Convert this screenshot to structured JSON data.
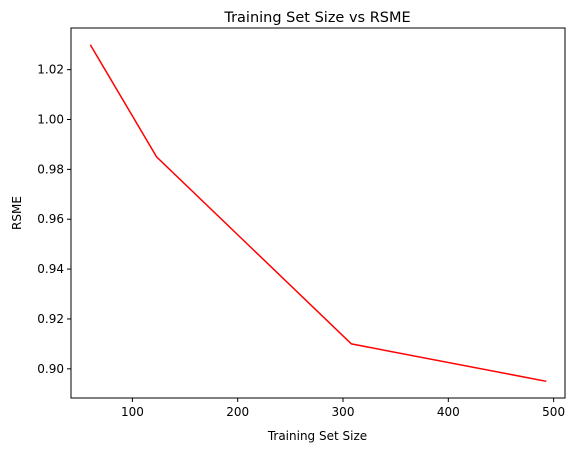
{
  "chart_data": {
    "type": "line",
    "title": "Training Set Size vs RSME",
    "xlabel": "Training Set Size",
    "ylabel": "RSME",
    "xlim": [
      41.7,
      510.8
    ],
    "ylim": [
      0.8883,
      1.0367
    ],
    "xticks": [
      100,
      200,
      300,
      400,
      500
    ],
    "yticks": [
      0.9,
      0.92,
      0.94,
      0.96,
      0.98,
      1.0,
      1.02
    ],
    "xtick_labels": [
      "100",
      "200",
      "300",
      "400",
      "500"
    ],
    "ytick_labels": [
      "0.90",
      "0.92",
      "0.94",
      "0.96",
      "0.98",
      "1.00",
      "1.02"
    ],
    "grid": false,
    "series": [
      {
        "color": "#ff0000",
        "x": [
          60,
          123,
          308,
          493
        ],
        "y": [
          1.03,
          0.985,
          0.91,
          0.895
        ]
      }
    ]
  }
}
